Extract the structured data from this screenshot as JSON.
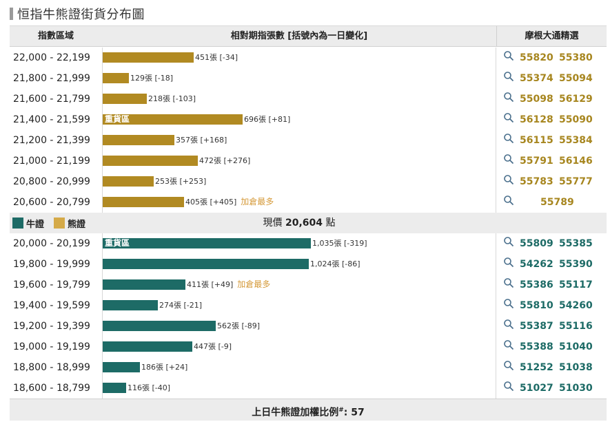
{
  "title": "恒指牛熊證街貨分布圖",
  "header": {
    "range": "指數區域",
    "bars": "相對期指張數 [括號內為一日變化]",
    "picks": "摩根大通精選"
  },
  "bear_rows": [
    {
      "range": "22,000 - 22,199",
      "contracts": 451,
      "label": "451張 [-34]",
      "codes": [
        "55820",
        "55380"
      ]
    },
    {
      "range": "21,800 - 21,999",
      "contracts": 129,
      "label": "129張 [-18]",
      "codes": [
        "55374",
        "55094"
      ]
    },
    {
      "range": "21,600 - 21,799",
      "contracts": 218,
      "label": "218張 [-103]",
      "codes": [
        "55098",
        "56129"
      ]
    },
    {
      "range": "21,400 - 21,599",
      "contracts": 696,
      "label": "696張 [+81]",
      "codes": [
        "56128",
        "55090"
      ],
      "tag": "重貨區"
    },
    {
      "range": "21,200 - 21,399",
      "contracts": 357,
      "label": "357張 [+168]",
      "codes": [
        "56115",
        "55384"
      ]
    },
    {
      "range": "21,000 - 21,199",
      "contracts": 472,
      "label": "472張 [+276]",
      "codes": [
        "55791",
        "56146"
      ]
    },
    {
      "range": "20,800 - 20,999",
      "contracts": 253,
      "label": "253張 [+253]",
      "codes": [
        "55783",
        "55777"
      ]
    },
    {
      "range": "20,600 - 20,799",
      "contracts": 405,
      "label": "405張 [+405]",
      "codes": [
        "55789"
      ],
      "note": "加倉最多"
    }
  ],
  "legend": {
    "bull": "牛證",
    "bear": "熊證"
  },
  "current_price": {
    "prefix": "現價",
    "value": "20,604",
    "unit": "點"
  },
  "bull_rows": [
    {
      "range": "20,000 - 20,199",
      "contracts": 1035,
      "label": "1,035張 [-319]",
      "codes": [
        "55809",
        "55385"
      ],
      "tag": "重貨區"
    },
    {
      "range": "19,800 - 19,999",
      "contracts": 1024,
      "label": "1,024張 [-86]",
      "codes": [
        "54262",
        "55390"
      ]
    },
    {
      "range": "19,600 - 19,799",
      "contracts": 411,
      "label": "411張 [+49]",
      "codes": [
        "55386",
        "55117"
      ],
      "note": "加倉最多"
    },
    {
      "range": "19,400 - 19,599",
      "contracts": 274,
      "label": "274張 [-21]",
      "codes": [
        "55810",
        "54260"
      ]
    },
    {
      "range": "19,200 - 19,399",
      "contracts": 562,
      "label": "562張 [-89]",
      "codes": [
        "55387",
        "55116"
      ]
    },
    {
      "range": "19,000 - 19,199",
      "contracts": 447,
      "label": "447張 [-9]",
      "codes": [
        "55388",
        "51040"
      ]
    },
    {
      "range": "18,800 - 18,999",
      "contracts": 186,
      "label": "186張 [+24]",
      "codes": [
        "51252",
        "51038"
      ]
    },
    {
      "range": "18,600 - 18,799",
      "contracts": 116,
      "label": "116張 [-40]",
      "codes": [
        "51027",
        "51030"
      ]
    }
  ],
  "footer": {
    "text": "上日牛熊證加權比例",
    "mark": "#",
    "value": ": 57"
  },
  "colors": {
    "bear": "#b18a22",
    "bull": "#1d6b66",
    "bear_legend": "#d5aa48",
    "note": "#d59a3a"
  }
}
